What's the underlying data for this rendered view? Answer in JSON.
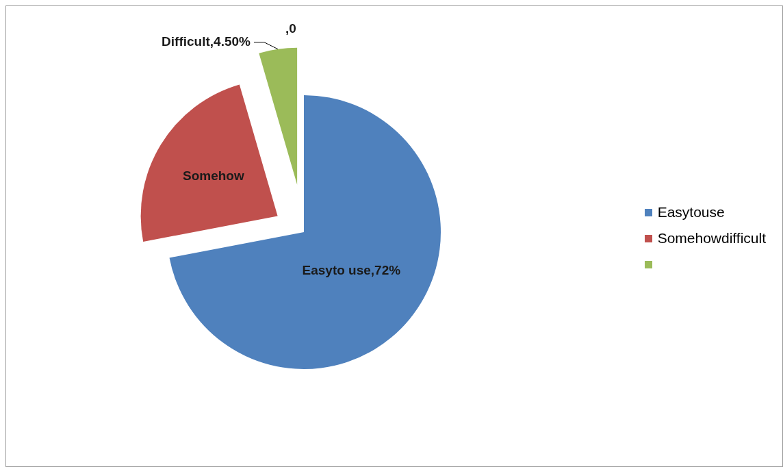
{
  "chart_data": {
    "type": "pie",
    "categories": [
      "Easytouse",
      "Somehowdifficult",
      null
    ],
    "values": [
      72,
      23.5,
      4.5
    ],
    "colors": [
      "#4f81bd",
      "#c0504d",
      "#9bbb59"
    ],
    "value_labels": [
      "Easyto use,72%",
      "Somehow",
      "Difficult,4.50%"
    ],
    "annotations": [
      ",0"
    ],
    "legend": "right"
  }
}
